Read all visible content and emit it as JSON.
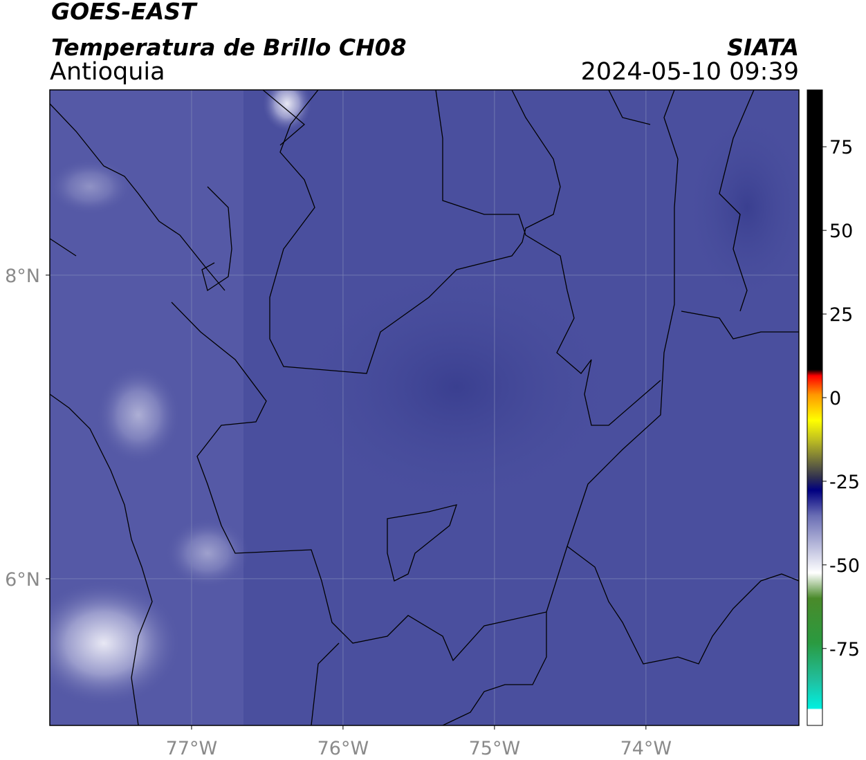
{
  "header": {
    "satellite": "GOES-EAST",
    "product": "Temperatura de Brillo CH08",
    "region": "Antioquia",
    "agency": "SIATA",
    "timestamp": "2024-05-10 09:39"
  },
  "map": {
    "xlim": [
      -77.936,
      -72.99
    ],
    "ylim": [
      5.034,
      9.22
    ],
    "grid": true,
    "xticks": [
      {
        "value": -77,
        "label": "77°W"
      },
      {
        "value": -76,
        "label": "76°W"
      },
      {
        "value": -75,
        "label": "75°W"
      },
      {
        "value": -74,
        "label": "74°W"
      }
    ],
    "yticks": [
      {
        "value": 8,
        "label": "8°N"
      },
      {
        "value": 6,
        "label": "6°N"
      }
    ]
  },
  "colorbar": {
    "lim": [
      -98,
      92
    ],
    "ticks": [
      75,
      50,
      25,
      0,
      -25,
      -50,
      -75
    ]
  }
}
